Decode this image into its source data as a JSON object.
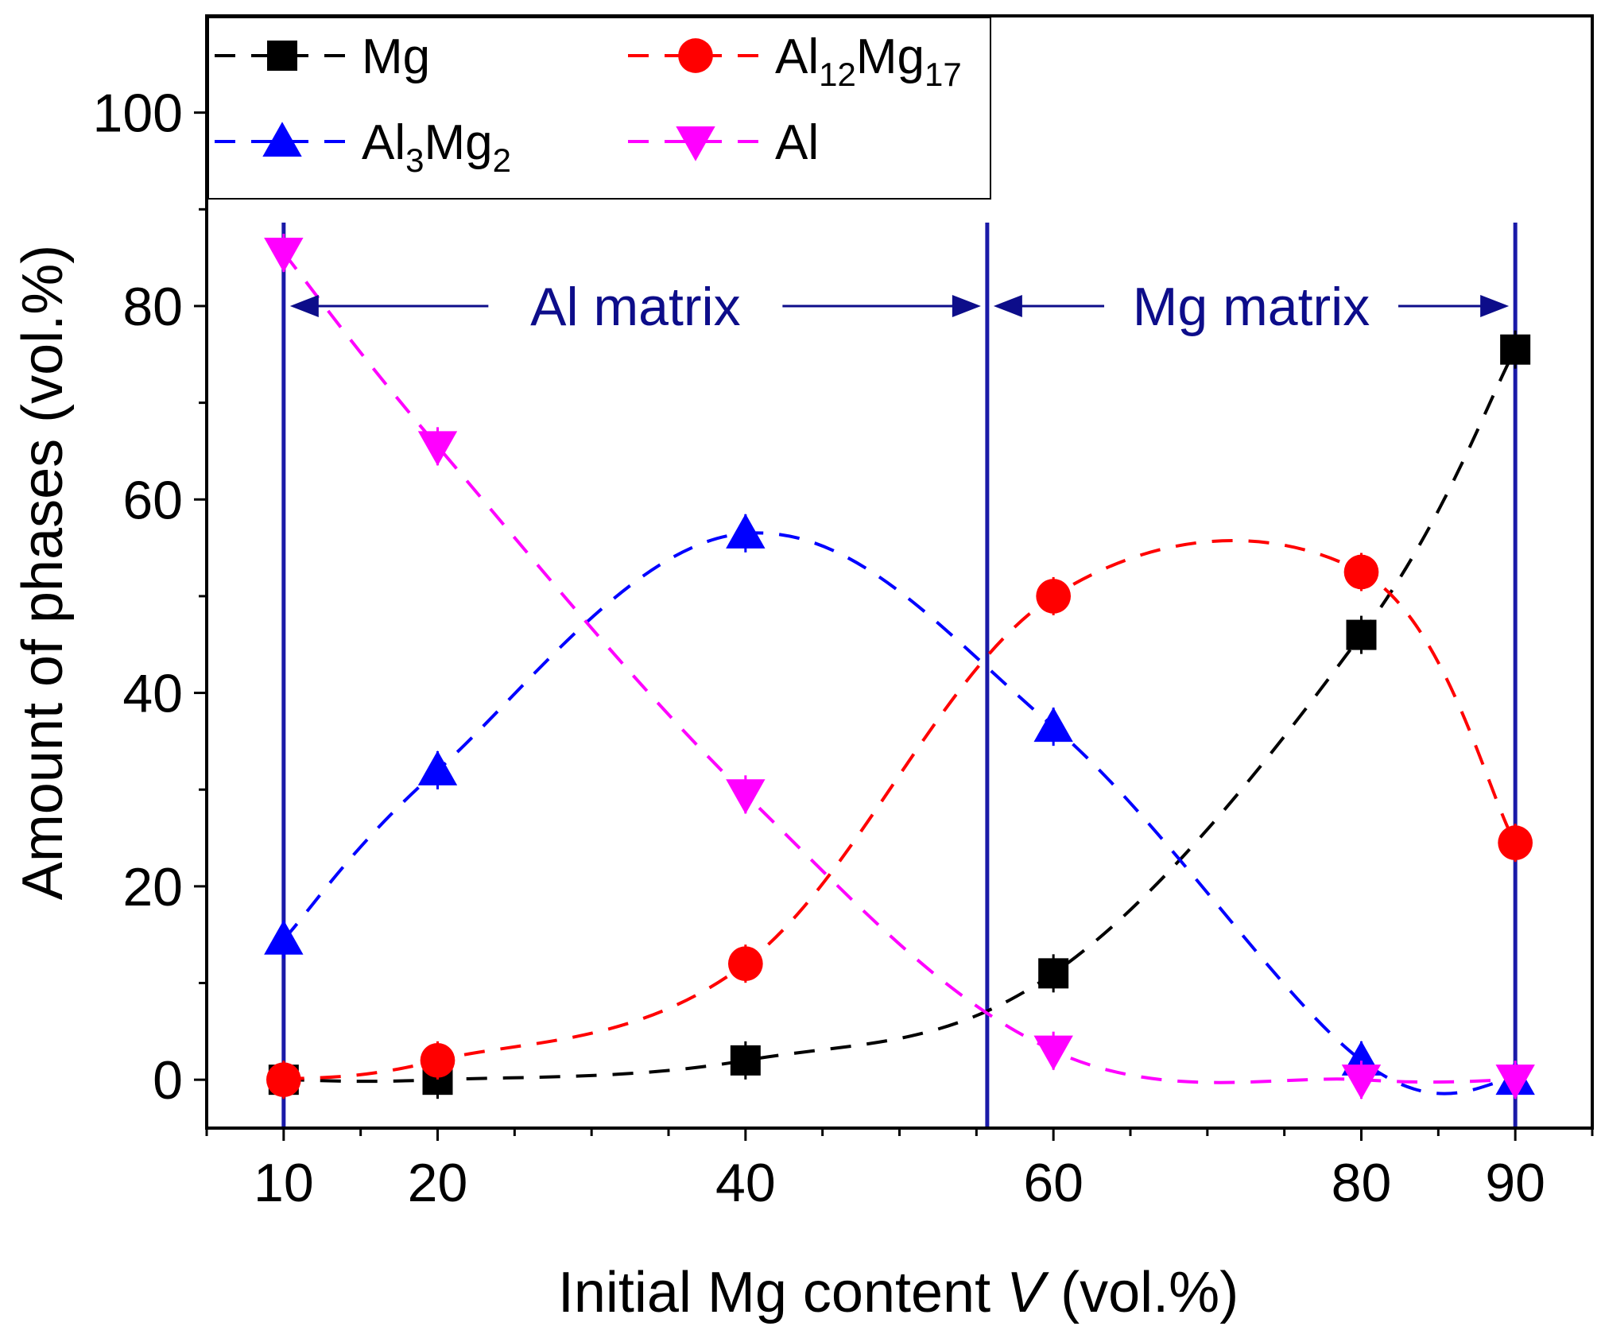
{
  "chart_data": {
    "type": "line",
    "title": "",
    "xlabel": "Initial Mg content",
    "xlabel_var": "V",
    "xlabel_unit": " (vol.%)",
    "ylabel": "Amount of phases (vol.%)",
    "xlim": [
      5,
      95
    ],
    "ylim": [
      -5,
      110
    ],
    "x": [
      10,
      20,
      40,
      60,
      80,
      90
    ],
    "x_tick_labels": [
      "10",
      "20",
      "40",
      "60",
      "80",
      "90"
    ],
    "y_ticks": [
      0,
      20,
      40,
      60,
      80,
      100
    ],
    "y_tick_labels": [
      "0",
      "20",
      "40",
      "60",
      "80",
      "100"
    ],
    "series": [
      {
        "name": "Mg",
        "sub": [],
        "color": "#000000",
        "marker": "square",
        "values": [
          0,
          0,
          2,
          11,
          46,
          75.5
        ]
      },
      {
        "name": "Al12Mg17",
        "sub": [
          "Al",
          "12",
          "Mg",
          "17"
        ],
        "color": "#ff0000",
        "marker": "circle",
        "values": [
          0,
          2,
          12,
          50,
          52.5,
          24.5
        ]
      },
      {
        "name": "Al3Mg2",
        "sub": [
          "Al",
          "3",
          "Mg",
          "2"
        ],
        "color": "#0000ff",
        "marker": "triangle-up",
        "values": [
          14.5,
          32,
          56.5,
          36.5,
          2,
          0
        ]
      },
      {
        "name": "Al",
        "sub": [],
        "color": "#ff00ff",
        "marker": "triangle-down",
        "values": [
          85.5,
          65.5,
          29.5,
          3,
          0,
          0
        ]
      }
    ],
    "legend_position": "top-left",
    "vertical_lines": [
      10,
      55.7,
      90
    ],
    "vertical_line_color": "#1a1aa8",
    "annotations": [
      {
        "text": "Al matrix",
        "from_x": 10,
        "to_x": 55.7,
        "y": 80
      },
      {
        "text": "Mg matrix",
        "from_x": 55.7,
        "to_x": 90,
        "y": 80
      }
    ],
    "annotation_color": "#0d0d8a"
  }
}
